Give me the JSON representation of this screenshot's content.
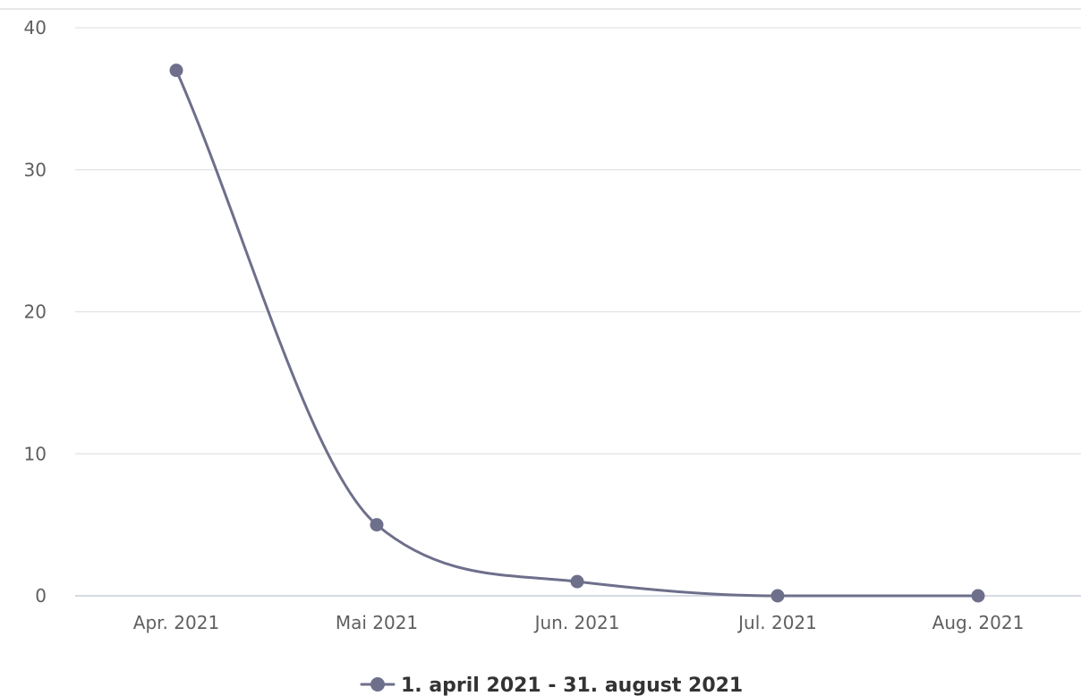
{
  "chart_data": {
    "type": "line",
    "title": "",
    "xlabel": "",
    "ylabel": "",
    "categories": [
      "Apr. 2021",
      "Mai 2021",
      "Jun. 2021",
      "Jul. 2021",
      "Aug. 2021"
    ],
    "series": [
      {
        "name": "1. april 2021 - 31. august 2021",
        "values": [
          37,
          5,
          1,
          0,
          0
        ],
        "color": "#6e6f8b"
      }
    ],
    "ylim": [
      0,
      40
    ],
    "yticks": [
      "0",
      "10",
      "20",
      "30",
      "40"
    ],
    "grid": true,
    "legend": "bottom-center",
    "smooth": true
  }
}
